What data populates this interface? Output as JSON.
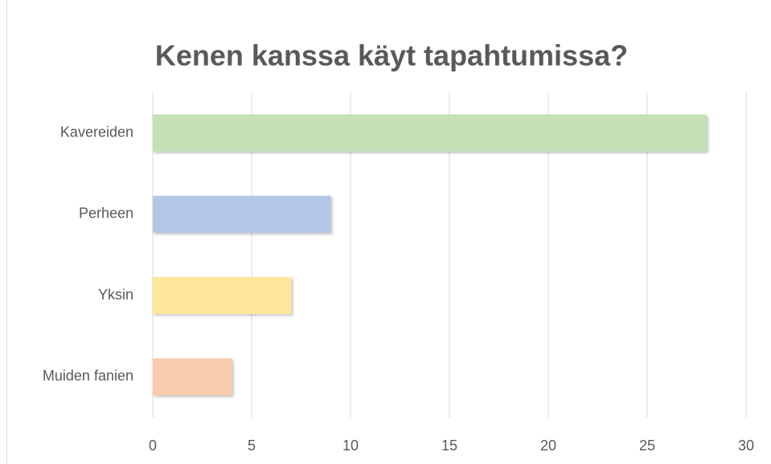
{
  "chart_data": {
    "type": "bar",
    "orientation": "horizontal",
    "title": "Kenen kanssa käyt tapahtumissa?",
    "categories": [
      "Kavereiden",
      "Perheen",
      "Yksin",
      "Muiden fanien"
    ],
    "values": [
      28,
      9,
      7,
      4
    ],
    "colors": [
      "#c5e0b4",
      "#b4c7e7",
      "#ffe699",
      "#f8cbad"
    ],
    "xlim": [
      0,
      30
    ],
    "xticks": [
      0,
      5,
      10,
      15,
      20,
      25,
      30
    ],
    "grid": true
  }
}
